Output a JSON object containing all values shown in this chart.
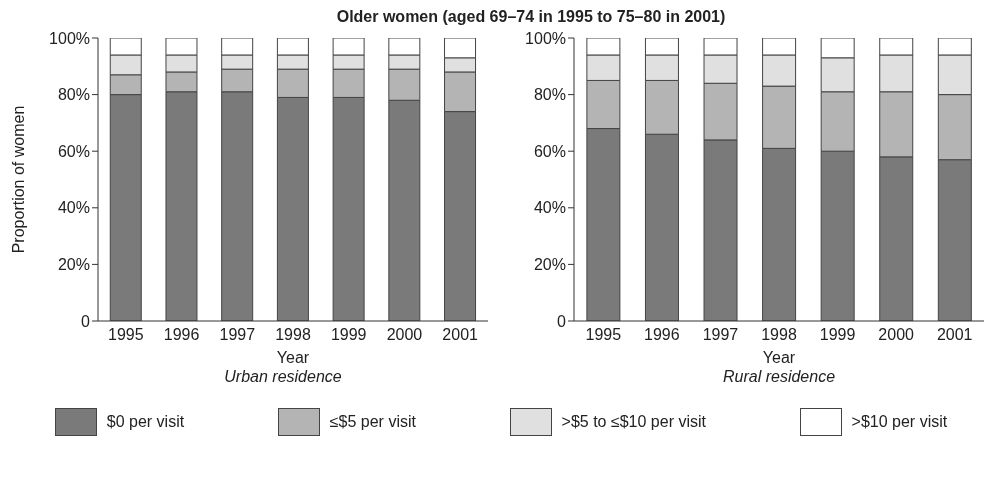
{
  "chart_data": [
    {
      "type": "bar",
      "stacked": true,
      "title": "Older women (aged 69–74 in 1995 to 75–80 in 2001)",
      "xlabel": "Year",
      "ylabel": "Proportion of women",
      "annotations": [
        "Urban residence"
      ],
      "categories": [
        "1995",
        "1996",
        "1997",
        "1998",
        "1999",
        "2000",
        "2001"
      ],
      "ylim": [
        0,
        100
      ],
      "yticks": [
        0,
        {
          "value": 20,
          "label": "20%"
        },
        {
          "value": 40,
          "label": "40%"
        },
        {
          "value": 60,
          "label": "60%"
        },
        {
          "value": 80,
          "label": "80%"
        },
        {
          "value": 100,
          "label": "100%"
        }
      ],
      "grid": false,
      "legend": "bottom",
      "series": [
        {
          "name": "$0 per visit",
          "color": "#7a7a7a",
          "values": [
            80,
            81,
            81,
            79,
            79,
            78,
            74
          ]
        },
        {
          "name": "≤$5 per visit",
          "color": "#b4b4b4",
          "values": [
            7,
            7,
            8,
            10,
            10,
            11,
            14
          ]
        },
        {
          "name": ">$5 to ≤$10 per visit",
          "color": "#e0e0e0",
          "values": [
            7,
            6,
            5,
            5,
            5,
            5,
            5
          ]
        },
        {
          "name": ">$10 per visit",
          "color": "#ffffff",
          "values": [
            6,
            6,
            6,
            6,
            6,
            6,
            7
          ]
        }
      ]
    },
    {
      "type": "bar",
      "stacked": true,
      "xlabel": "Year",
      "annotations": [
        "Rural residence"
      ],
      "categories": [
        "1995",
        "1996",
        "1997",
        "1998",
        "1999",
        "2000",
        "2001"
      ],
      "ylim": [
        0,
        100
      ],
      "yticks": [
        0,
        {
          "value": 20,
          "label": "20%"
        },
        {
          "value": 40,
          "label": "40%"
        },
        {
          "value": 60,
          "label": "60%"
        },
        {
          "value": 80,
          "label": "80%"
        },
        {
          "value": 100,
          "label": "100%"
        }
      ],
      "grid": false,
      "series": [
        {
          "color": "#7a7a7a",
          "values": [
            68,
            66,
            64,
            61,
            60,
            58,
            57
          ]
        },
        {
          "color": "#b4b4b4",
          "values": [
            17,
            19,
            20,
            22,
            21,
            23,
            23
          ]
        },
        {
          "color": "#e0e0e0",
          "values": [
            9,
            9,
            10,
            11,
            12,
            13,
            14
          ]
        },
        {
          "color": "#ffffff",
          "values": [
            6,
            6,
            6,
            6,
            7,
            6,
            6
          ]
        }
      ]
    }
  ]
}
